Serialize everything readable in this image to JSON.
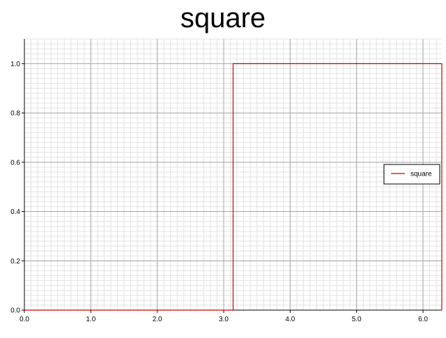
{
  "chart_data": {
    "type": "line",
    "title": "square",
    "xlabel": "",
    "ylabel": "",
    "xlim": [
      0,
      6.283
    ],
    "ylim": [
      0,
      1.1
    ],
    "grid": true,
    "legend_position": "right",
    "x_ticks": [
      0.0,
      1.0,
      2.0,
      3.0,
      4.0,
      5.0,
      6.0
    ],
    "x_tick_labels": [
      "0.0",
      "1.0",
      "2.0",
      "3.0",
      "4.0",
      "5.0",
      "6.0"
    ],
    "y_ticks": [
      0.0,
      0.2,
      0.4,
      0.6,
      0.8,
      1.0
    ],
    "y_tick_labels": [
      "0.0",
      "0.2",
      "0.4",
      "0.6",
      "0.8",
      "1.0"
    ],
    "series": [
      {
        "name": "square",
        "color": "#cc0000",
        "x": [
          0.0,
          3.1416,
          3.1416,
          6.283,
          6.283
        ],
        "y": [
          0.0,
          0.0,
          1.0,
          1.0,
          0.0
        ]
      }
    ]
  }
}
